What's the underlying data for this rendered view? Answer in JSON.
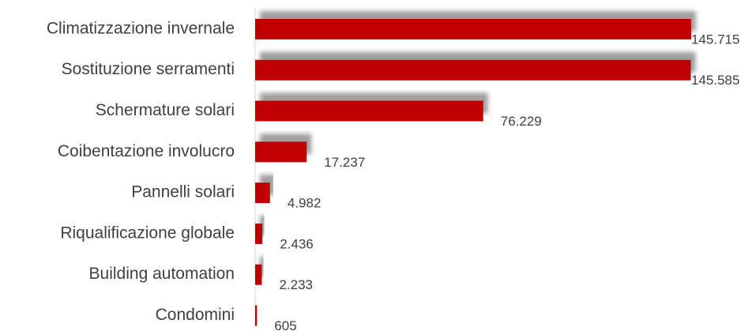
{
  "chart_data": {
    "type": "bar",
    "orientation": "horizontal",
    "categories": [
      "Climatizzazione invernale",
      "Sostituzione serramenti",
      "Schermature solari",
      "Coibentazione involucro",
      "Pannelli solari",
      "Riqualificazione globale",
      "Building automation",
      "Condomini"
    ],
    "values": [
      145715,
      145585,
      76229,
      17237,
      4982,
      2436,
      2233,
      605
    ],
    "value_labels": [
      "145.715",
      "145.585",
      "76.229",
      "17.237",
      "4.982",
      "2.436",
      "2.233",
      "605"
    ],
    "color": "#c00000"
  }
}
